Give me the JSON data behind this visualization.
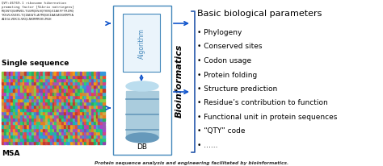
{
  "title": "Protein sequence analysis and engineering facilitated by bioinformatics.",
  "background_color": "#ffffff",
  "single_seq_label": "Single sequence",
  "msa_label": "MSA",
  "db_label": "DB",
  "algorithm_label": "Algorithm",
  "bioinformatics_label": "Bioinformatics",
  "basic_params_label": "Basic biological parameters",
  "bullet_items": [
    "• Phylogeny",
    "• Conserved sites",
    "• Codon usage",
    "• Protein folding",
    "• Structure prediction",
    "• Residue’s contribution to function",
    "• Functional unit in protein sequences",
    "• “QTY” code",
    "• ......"
  ],
  "seq_text_lines": [
    "QVY:46769.1 ribosome hibernation",
    "promoting factor [Vibrio natriegens]",
    "MQINTQGHMVDLTGGMQDVVQTKRQXIAKFFTRIMQ",
    "YKVVLKVEKLTQIAEATLAYMQGKIAASADGKMMYA",
    "AIDGLVDKILVKQLNKRMREKLMGH"
  ],
  "arrow_color": "#1155cc",
  "box_color": "#4488bb",
  "outer_box_color": "#4488bb",
  "db_body_color": "#aaccdd",
  "db_stripe_color": "#6699bb",
  "db_top_color": "#bbddee",
  "algorithm_box_color": "#eaf4fb",
  "algorithm_text_color": "#4488bb",
  "bracket_color": "#2255aa",
  "bioinf_text_color": "#000000",
  "msa_colors": [
    "#e74c3c",
    "#2ecc71",
    "#3498db",
    "#f39c12",
    "#9b59b6",
    "#1abc9c",
    "#e67e22",
    "#c0392b",
    "#27ae60",
    "#8e44ad"
  ],
  "msa_colors2": [
    "#cc8844",
    "#44aacc",
    "#88cc44",
    "#aa44cc",
    "#cc4488",
    "#44ccaa",
    "#ccaa44",
    "#4488cc",
    "#88aa44",
    "#cc4444"
  ]
}
